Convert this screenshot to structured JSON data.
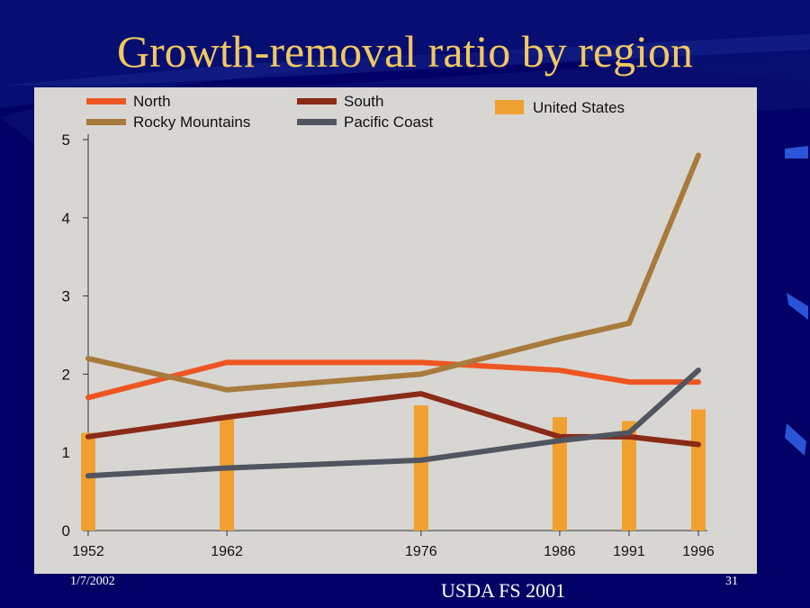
{
  "slide": {
    "title": "Growth-removal ratio by region",
    "date": "1/7/2002",
    "page_number": "31",
    "source": "USDA FS 2001"
  },
  "colors": {
    "background": "#000066",
    "title": "#f2c860",
    "panel": "#d8d6d3"
  },
  "chart_data": {
    "type": "line",
    "title": "",
    "xlabel": "",
    "ylabel": "",
    "x": [
      1952,
      1962,
      1976,
      1986,
      1991,
      1996
    ],
    "x_tick_labels": [
      "1952",
      "1962",
      "1976",
      "1986",
      "1991",
      "1996"
    ],
    "ylim": [
      0,
      5
    ],
    "y_ticks": [
      0,
      1,
      2,
      3,
      4,
      5
    ],
    "series": [
      {
        "name": "North",
        "color": "#ee5522",
        "kind": "line",
        "values": [
          1.7,
          2.15,
          2.15,
          2.05,
          1.9,
          1.9
        ]
      },
      {
        "name": "Rocky Mountains",
        "color": "#a87a3c",
        "kind": "line",
        "values": [
          2.2,
          1.8,
          2.0,
          2.45,
          2.65,
          4.8
        ]
      },
      {
        "name": "South",
        "color": "#8a2a18",
        "kind": "line",
        "values": [
          1.2,
          1.45,
          1.75,
          1.2,
          1.2,
          1.1
        ]
      },
      {
        "name": "Pacific Coast",
        "color": "#505560",
        "kind": "line",
        "values": [
          0.7,
          0.8,
          0.9,
          1.15,
          1.25,
          2.05
        ]
      },
      {
        "name": "United States",
        "color": "#f0a030",
        "kind": "bar",
        "values": [
          1.25,
          1.45,
          1.6,
          1.45,
          1.4,
          1.55
        ]
      }
    ],
    "legend_position": "top",
    "grid": false
  }
}
